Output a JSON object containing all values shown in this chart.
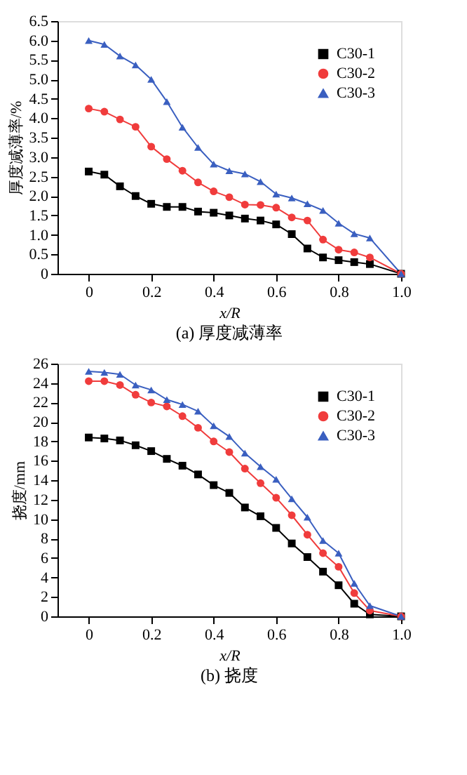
{
  "chart_data": [
    {
      "type": "line",
      "title": "(a) 厚度减薄率",
      "xlabel": "x/R",
      "ylabel": "厚度减薄率/%",
      "legend": "top right",
      "grid": false,
      "line_style": "solid",
      "x": [
        0,
        0.05,
        0.1,
        0.15,
        0.2,
        0.25,
        0.3,
        0.35,
        0.4,
        0.45,
        0.5,
        0.55,
        0.6,
        0.65,
        0.7,
        0.75,
        0.8,
        0.85,
        0.9,
        1.0
      ],
      "xlim": [
        -0.1,
        1.0
      ],
      "xticks": [
        0,
        0.2,
        0.4,
        0.6,
        0.8,
        {
          "value": 1,
          "label": "1.0"
        }
      ],
      "ylim": [
        0,
        6.5
      ],
      "yticks": [
        0,
        0.5,
        {
          "value": 1,
          "label": "1.0"
        },
        1.5,
        {
          "value": 2,
          "label": "2.0"
        },
        2.5,
        {
          "value": 3,
          "label": "3.0"
        },
        3.5,
        {
          "value": 4,
          "label": "4.0"
        },
        4.5,
        {
          "value": 5,
          "label": "5.0"
        },
        5.5,
        {
          "value": 6,
          "label": "6.0"
        },
        6.5
      ],
      "series": [
        {
          "name": "C30-1",
          "color": "#000000",
          "marker": "square",
          "values": [
            2.63,
            2.55,
            2.25,
            2.0,
            1.8,
            1.72,
            1.72,
            1.6,
            1.57,
            1.5,
            1.42,
            1.37,
            1.27,
            1.02,
            0.65,
            0.42,
            0.35,
            0.3,
            0.25,
            0
          ]
        },
        {
          "name": "C30-2",
          "color": "#f03c3c",
          "marker": "circle",
          "values": [
            4.25,
            4.17,
            3.97,
            3.78,
            3.27,
            2.95,
            2.65,
            2.35,
            2.12,
            1.97,
            1.78,
            1.77,
            1.7,
            1.45,
            1.37,
            0.88,
            0.62,
            0.55,
            0.42,
            0
          ]
        },
        {
          "name": "C30-3",
          "color": "#3a5fc0",
          "marker": "triangle",
          "values": [
            6.0,
            5.9,
            5.6,
            5.37,
            5.0,
            4.43,
            3.77,
            3.25,
            2.82,
            2.65,
            2.57,
            2.37,
            2.05,
            1.95,
            1.8,
            1.63,
            1.3,
            1.03,
            0.92,
            0
          ]
        }
      ]
    },
    {
      "type": "line",
      "title": "(b) 挠度",
      "xlabel": "x/R",
      "ylabel": "挠度/mm",
      "legend": "top right",
      "grid": false,
      "line_style": "solid",
      "x": [
        0,
        0.05,
        0.1,
        0.15,
        0.2,
        0.25,
        0.3,
        0.35,
        0.4,
        0.45,
        0.5,
        0.55,
        0.6,
        0.65,
        0.7,
        0.75,
        0.8,
        0.85,
        0.9,
        1.0
      ],
      "xlim": [
        -0.1,
        1.0
      ],
      "xticks": [
        0,
        0.2,
        0.4,
        0.6,
        0.8,
        {
          "value": 1,
          "label": "1.0"
        }
      ],
      "ylim": [
        0,
        26
      ],
      "yticks": [
        0,
        2,
        4,
        6,
        8,
        10,
        12,
        14,
        16,
        18,
        20,
        22,
        24,
        26
      ],
      "series": [
        {
          "name": "C30-1",
          "color": "#000000",
          "marker": "square",
          "values": [
            18.4,
            18.3,
            18.1,
            17.6,
            17.0,
            16.2,
            15.5,
            14.6,
            13.5,
            12.7,
            11.2,
            10.3,
            9.1,
            7.5,
            6.1,
            4.6,
            3.2,
            1.3,
            0.2,
            0
          ]
        },
        {
          "name": "C30-2",
          "color": "#f03c3c",
          "marker": "circle",
          "values": [
            24.2,
            24.2,
            23.8,
            22.8,
            22.0,
            21.6,
            20.6,
            19.4,
            18.0,
            16.9,
            15.2,
            13.7,
            12.2,
            10.4,
            8.4,
            6.5,
            5.1,
            2.4,
            0.6,
            0
          ]
        },
        {
          "name": "C30-3",
          "color": "#3a5fc0",
          "marker": "triangle",
          "values": [
            25.2,
            25.1,
            24.9,
            23.8,
            23.3,
            22.3,
            21.8,
            21.1,
            19.6,
            18.5,
            16.8,
            15.4,
            14.1,
            12.1,
            10.2,
            7.8,
            6.5,
            3.4,
            1.1,
            0
          ]
        }
      ]
    }
  ]
}
